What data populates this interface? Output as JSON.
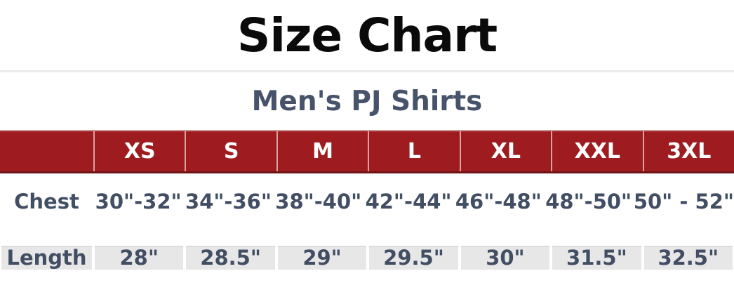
{
  "page": {
    "title": "Size Chart",
    "subtitle": "Men's PJ Shirts"
  },
  "colors": {
    "title_text": "#0a0a0a",
    "subtitle_text": "#46536b",
    "header_bg": "#9e1c1f",
    "header_text": "#ffffff",
    "body_text": "#414e63",
    "length_row_bg": "#e8e7e7",
    "divider": "#ececec"
  },
  "chart_data": {
    "type": "table",
    "title": "Size Chart",
    "subtitle": "Men's PJ Shirts",
    "columns": [
      "",
      "XS",
      "S",
      "M",
      "L",
      "XL",
      "XXL",
      "3XL"
    ],
    "rows": [
      {
        "label": "Chest",
        "values": [
          "30\"-32\"",
          "34\"-36\"",
          "38\"-40\"",
          "42\"-44\"",
          "46\"-48\"",
          "48\"-50\"",
          "50\" - 52\""
        ]
      },
      {
        "label": "Length",
        "values": [
          "28\"",
          "28.5\"",
          "29\"",
          "29.5\"",
          "30\"",
          "31.5\"",
          "32.5\""
        ]
      }
    ]
  }
}
